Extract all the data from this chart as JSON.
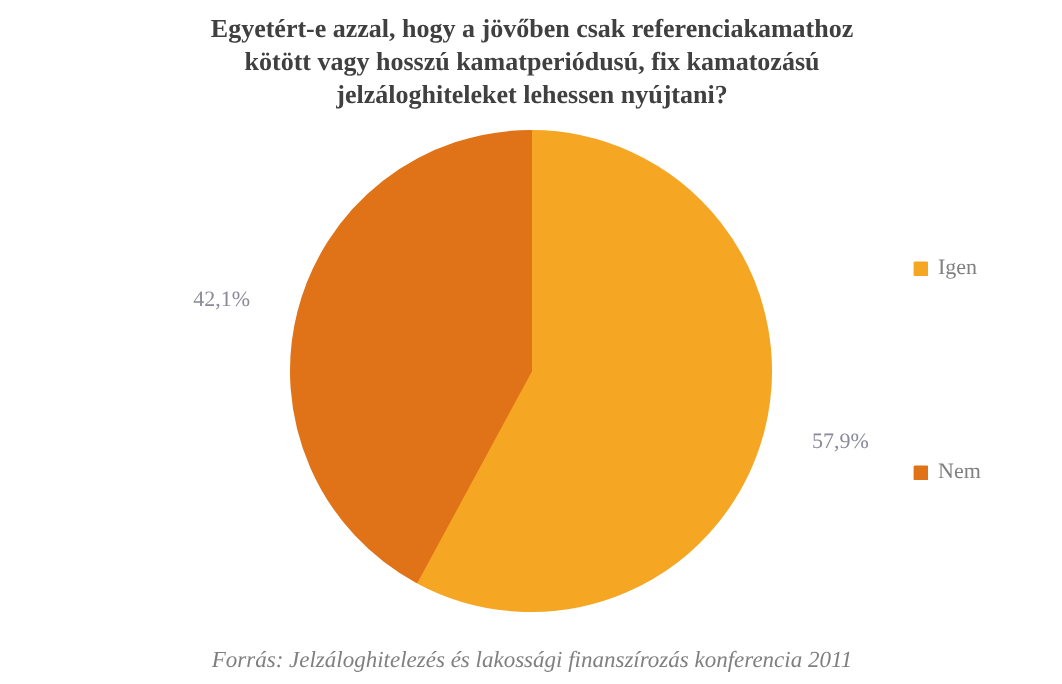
{
  "chart_data": {
    "type": "pie",
    "title": "Egyetért-e azzal, hogy a jövőben csak referenciakamathoz\nkötött vagy hosszú kamatperiódusú, fix kamatozású\njelzáloghiteleket lehessen nyújtani?",
    "categories": [
      "Igen",
      "Nem"
    ],
    "values": [
      57.9,
      42.1
    ],
    "colors": [
      "#f5a623",
      "#e07318"
    ],
    "value_labels": [
      "57,9%",
      "42,1%"
    ],
    "legend": "right",
    "annotations": [
      "Forrás: Jelzáloghitelezés és lakossági finanszírozás konferencia 2011"
    ]
  }
}
